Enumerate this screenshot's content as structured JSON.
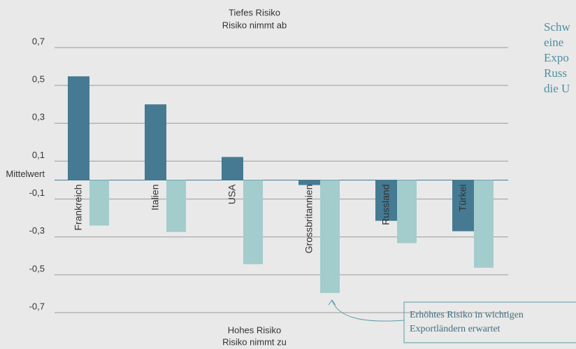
{
  "chart_data": {
    "type": "bar",
    "categories": [
      "Frankreich",
      "Italien",
      "USA",
      "Grossbritannien",
      "Russland",
      "Türkei"
    ],
    "series": [
      {
        "color": "#457a92",
        "values": [
          0.548,
          0.4,
          0.122,
          -0.026,
          -0.215,
          -0.27
        ]
      },
      {
        "color": "#a3cccc",
        "values": [
          -0.24,
          -0.274,
          -0.444,
          -0.596,
          -0.333,
          -0.463
        ]
      }
    ],
    "ylim": [
      -0.7,
      0.7
    ],
    "yticks": [
      {
        "value": 0.7,
        "label": "0,7"
      },
      {
        "value": 0.5,
        "label": "0,5"
      },
      {
        "value": 0.3,
        "label": "0,3"
      },
      {
        "value": 0.1,
        "label": "0,1"
      },
      {
        "value": 0,
        "label": "Mittelwert"
      },
      {
        "value": -0.1,
        "label": "-0,1"
      },
      {
        "value": -0.3,
        "label": "-0,3"
      },
      {
        "value": -0.5,
        "label": "-0,5"
      },
      {
        "value": -0.7,
        "label": "-0,7"
      }
    ],
    "grid": true,
    "annotations": {
      "top": [
        "Tiefes Risiko",
        "Risiko nimmt ab"
      ],
      "bottom": [
        "Hohes Risiko",
        "Risiko nimmt zu"
      ],
      "callout": [
        "Erhöhtes Risiko in wichtigen",
        "Exportländern erwartet"
      ],
      "side": [
        "Schw",
        "eine",
        "Expo",
        "Russ",
        "die U"
      ]
    }
  }
}
